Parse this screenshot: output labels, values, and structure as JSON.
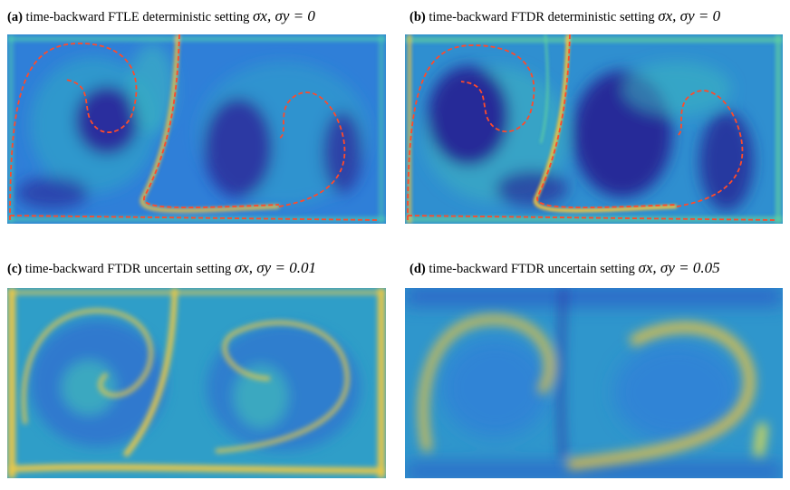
{
  "panels": [
    {
      "tag": "(a)",
      "label": "time-backward FTLE  deterministic setting",
      "math": "σx, σy = 0"
    },
    {
      "tag": "(b)",
      "label": "time-backward FTDR  deterministic setting",
      "math": "σx, σy = 0"
    },
    {
      "tag": "(c)",
      "label": "time-backward FTDR  uncertain setting",
      "math": "σx, σy = 0.01"
    },
    {
      "tag": "(d)",
      "label": "time-backward FTDR  uncertain setting",
      "math": "σx, σy = 0.05"
    }
  ],
  "colors": {
    "field_low": "#2c2aa0",
    "field_mid": "#2f7fd8",
    "field_teal": "#2fb0b8",
    "field_high": "#f4c53a",
    "ridge": "#ff4a2a"
  }
}
